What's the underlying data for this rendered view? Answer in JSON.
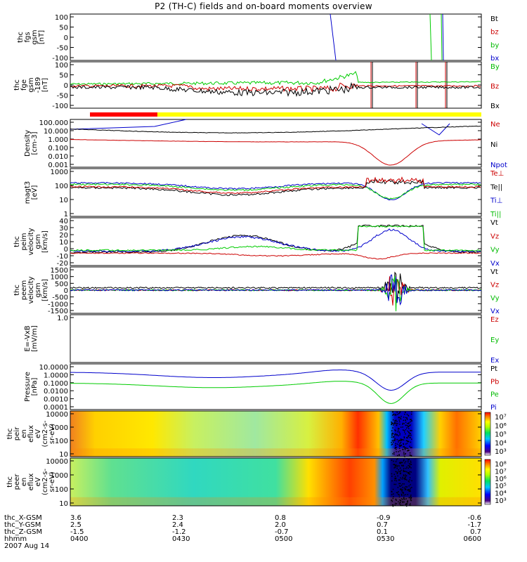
{
  "title": "P2 (TH-C) fields and on-board moments overview",
  "chart_data": {
    "type": "line",
    "title": "P2 (TH-C) fields and on-board moments overview",
    "x_range": [
      "0400",
      "0600"
    ],
    "panels": [
      {
        "ylabel": [
          "thc",
          "fgs",
          "gsm",
          "[nT]"
        ],
        "ylim": [
          -100,
          100
        ],
        "yticks": [
          "100",
          "50",
          "0",
          "-50",
          "-100"
        ],
        "legend": [
          {
            "label": "Bt",
            "color": "#000000"
          },
          {
            "label": "bz",
            "color": "#cc0000"
          },
          {
            "label": "by",
            "color": "#00bb00"
          },
          {
            "label": "bx",
            "color": "#0000cc"
          }
        ]
      },
      {
        "ylabel": [
          "thc",
          "fge",
          "gsm",
          "-189",
          "[nT]"
        ],
        "ylim": [
          -125,
          125
        ],
        "yticks": [
          "100",
          "50",
          "0",
          "-50",
          "-100"
        ],
        "legend": [
          {
            "label": "By",
            "color": "#00bb00"
          },
          {
            "label": "Bz",
            "color": "#cc0000"
          },
          {
            "label": "Bx",
            "color": "#000000"
          }
        ]
      },
      {
        "ylabel": [
          "Density",
          "[cm-3]"
        ],
        "scale": "log",
        "yticks": [
          "100.000",
          "10.000",
          "1.000",
          "0.100",
          "0.010",
          "0.001"
        ],
        "legend": [
          {
            "label": "Ne",
            "color": "#cc0000"
          },
          {
            "label": "Ni",
            "color": "#000000"
          },
          {
            "label": "Npot",
            "color": "#0000cc"
          }
        ]
      },
      {
        "ylabel": [
          "magt3",
          "[eV]"
        ],
        "scale": "log",
        "yticks": [
          "1000",
          "100",
          "10",
          "1"
        ],
        "legend": [
          {
            "label": "Te⊥",
            "color": "#cc0000"
          },
          {
            "label": "Te||",
            "color": "#000000"
          },
          {
            "label": "Ti⊥",
            "color": "#0000cc"
          },
          {
            "label": "Ti||",
            "color": "#00bb00"
          }
        ]
      },
      {
        "ylabel": [
          "thc",
          "peim",
          "velocity",
          "gsm",
          "[km/s]"
        ],
        "ylim": [
          -20,
          40
        ],
        "yticks": [
          "40",
          "30",
          "20",
          "10",
          "0",
          "-10",
          "-20"
        ],
        "legend": [
          {
            "label": "Vt",
            "color": "#000000"
          },
          {
            "label": "Vz",
            "color": "#cc0000"
          },
          {
            "label": "Vy",
            "color": "#00bb00"
          },
          {
            "label": "Vx",
            "color": "#0000cc"
          }
        ]
      },
      {
        "ylabel": [
          "thc",
          "peem",
          "velocity",
          "gsm",
          "[km/s]"
        ],
        "ylim": [
          -1500,
          1500
        ],
        "yticks": [
          "1500",
          "1000",
          "500",
          "0",
          "-500",
          "-1000",
          "-1500"
        ],
        "legend": [
          {
            "label": "Vt",
            "color": "#000000"
          },
          {
            "label": "Vz",
            "color": "#cc0000"
          },
          {
            "label": "Vy",
            "color": "#00bb00"
          },
          {
            "label": "Vx",
            "color": "#0000cc"
          }
        ]
      },
      {
        "ylabel": [
          "E=-VxB",
          "[mV/m]"
        ],
        "ylim": [
          -1,
          1
        ],
        "yticks": [
          "1.0"
        ],
        "legend": [
          {
            "label": "Ez",
            "color": "#cc0000"
          },
          {
            "label": "Ey",
            "color": "#00bb00"
          },
          {
            "label": "Ex",
            "color": "#0000cc"
          }
        ]
      },
      {
        "ylabel": [
          "Pressure",
          "[nPa]"
        ],
        "scale": "log",
        "yticks": [
          "10.0000",
          "1.0000",
          "0.1000",
          "0.0100",
          "0.0010",
          "0.0001"
        ],
        "legend": [
          {
            "label": "Pt",
            "color": "#000000"
          },
          {
            "label": "Pb",
            "color": "#cc0000"
          },
          {
            "label": "Pe",
            "color": "#00bb00"
          },
          {
            "label": "Pi",
            "color": "#0000cc"
          }
        ]
      },
      {
        "ylabel": [
          "thc",
          "peir",
          "en",
          "eflux",
          "eV",
          "(cm2-s-",
          "sr-eV)"
        ],
        "type": "spectrogram",
        "yticks": [
          "10000",
          "1000",
          "100",
          "10"
        ],
        "colorbar": [
          "10⁷",
          "10⁶",
          "10⁵",
          "10⁴",
          "10³"
        ]
      },
      {
        "ylabel": [
          "thc",
          "peer",
          "en",
          "eflux",
          "eV",
          "(cm2-s-",
          "sr-eV)"
        ],
        "type": "spectrogram",
        "yticks": [
          "10000",
          "1000",
          "100",
          "10"
        ],
        "colorbar": [
          "10⁸",
          "10⁷",
          "10⁶",
          "10⁵",
          "10⁴",
          "10³"
        ]
      }
    ],
    "footer": {
      "rows": [
        {
          "label": "thc_X-GSM",
          "values": [
            "3.6",
            "2.3",
            "0.8",
            "-0.9",
            "-0.6"
          ]
        },
        {
          "label": "thc_Y-GSM",
          "values": [
            "2.5",
            "2.4",
            "2.0",
            "0.7",
            "-1.7"
          ]
        },
        {
          "label": "thc_Z-GSM",
          "values": [
            "-1.5",
            "-1.2",
            "-0.7",
            "0.1",
            "0.7"
          ]
        },
        {
          "label": "hhmm",
          "values": [
            "0400",
            "0430",
            "0500",
            "0530",
            "0600"
          ]
        }
      ],
      "date": "2007 Aug 14"
    }
  }
}
